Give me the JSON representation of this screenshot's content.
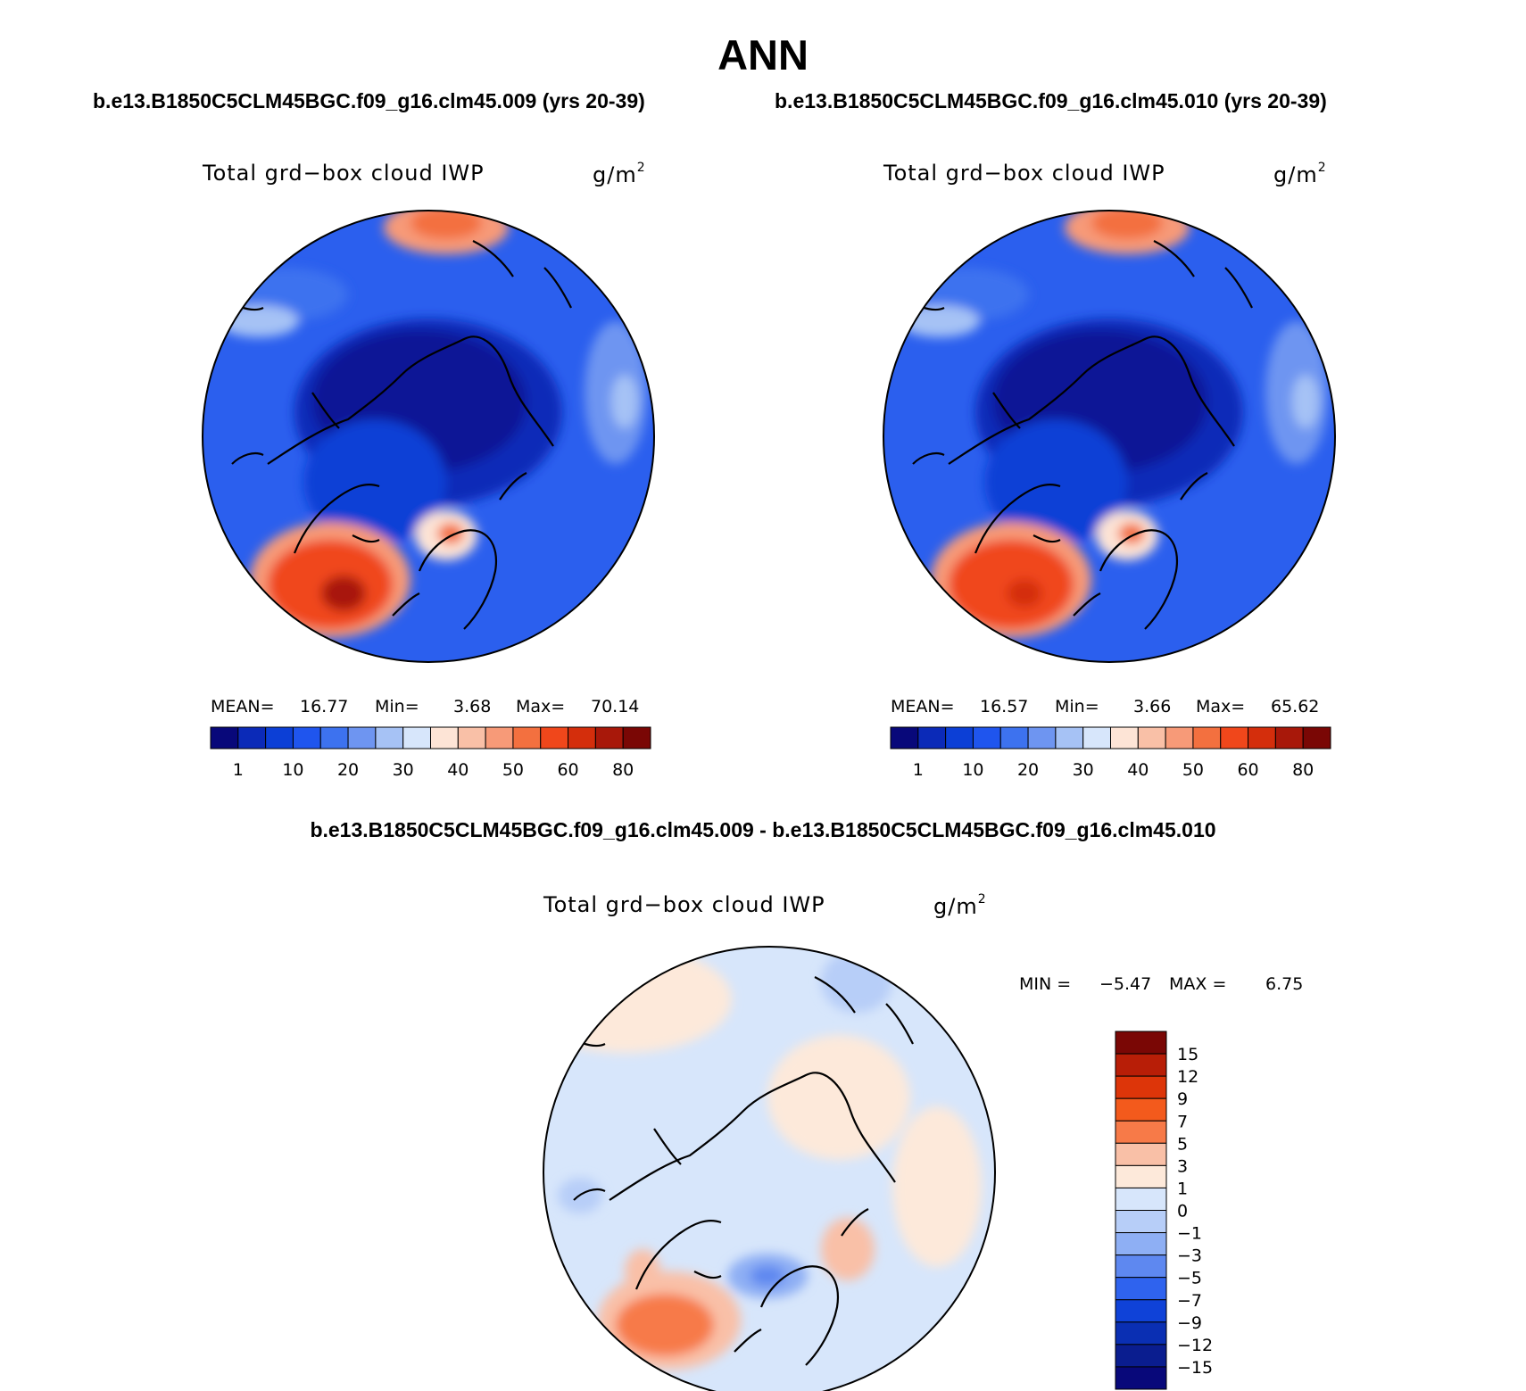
{
  "title": "ANN",
  "panels": [
    {
      "case": "b.e13.B1850C5CLM45BGC.f09_g16.clm45.009 (yrs 20-39)",
      "variable": "Total grd−box cloud IWP",
      "units": "g/m",
      "units_exp": "2",
      "stats": {
        "mean_label": "MEAN=",
        "mean": "16.77",
        "min_label": "Min=",
        "min": "3.68",
        "max_label": "Max=",
        "max": "70.14"
      }
    },
    {
      "case": "b.e13.B1850C5CLM45BGC.f09_g16.clm45.010 (yrs 20-39)",
      "variable": "Total grd−box cloud IWP",
      "units": "g/m",
      "units_exp": "2",
      "stats": {
        "mean_label": "MEAN=",
        "mean": "16.57",
        "min_label": "Min=",
        "min": "3.66",
        "max_label": "Max=",
        "max": "65.62"
      }
    }
  ],
  "difference": {
    "title": "b.e13.B1850C5CLM45BGC.f09_g16.clm45.009 - b.e13.B1850C5CLM45BGC.f09_g16.clm45.010",
    "variable": "Total grd−box cloud IWP",
    "units": "g/m",
    "units_exp": "2",
    "min_label": "MIN =",
    "min": "−5.47",
    "max_label": "MAX =",
    "max": "6.75"
  },
  "colorbar_abs": {
    "colors": [
      "#08087a",
      "#0b2ab8",
      "#0c3fd6",
      "#1f55ee",
      "#3d72ef",
      "#6e95f1",
      "#a6c2f5",
      "#d7e6fb",
      "#fde4d6",
      "#f9c0a7",
      "#f79a78",
      "#f3703f",
      "#f0471b",
      "#d42e0c",
      "#a8180a",
      "#7a0705"
    ],
    "labels": [
      "1",
      "10",
      "20",
      "30",
      "40",
      "50",
      "60",
      "80"
    ]
  },
  "colorbar_diff": {
    "colors": [
      "#7a0705",
      "#b81e07",
      "#dd3509",
      "#f35a1c",
      "#f77a48",
      "#f9c0a7",
      "#fde9da",
      "#d7e6fb",
      "#b7cef8",
      "#8eaff4",
      "#5e88f0",
      "#2f63ee",
      "#0f42d8",
      "#0a2fb3",
      "#0a1d8f",
      "#08087a"
    ],
    "labels": [
      "15",
      "12",
      "9",
      "7",
      "5",
      "3",
      "1",
      "0",
      "−1",
      "−3",
      "−5",
      "−7",
      "−9",
      "−12",
      "−15"
    ]
  }
}
